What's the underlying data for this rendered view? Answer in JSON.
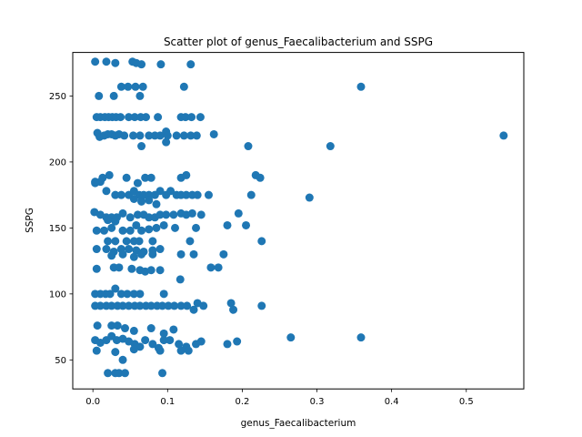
{
  "chart_data": {
    "type": "scatter",
    "title": "Scatter plot of genus_Faecalibacterium and SSPG",
    "xlabel": "genus_Faecalibacterium",
    "ylabel": "SSPG",
    "xlim": [
      -0.027,
      0.577
    ],
    "ylim": [
      28,
      283
    ],
    "xticks": [
      0.0,
      0.1,
      0.2,
      0.3,
      0.4,
      0.5
    ],
    "xtick_labels": [
      "0.0",
      "0.1",
      "0.2",
      "0.3",
      "0.4",
      "0.5"
    ],
    "yticks": [
      50,
      100,
      150,
      200,
      250
    ],
    "ytick_labels": [
      "50",
      "100",
      "150",
      "200",
      "250"
    ],
    "grid": false,
    "color": "#1f77b4",
    "series": [
      {
        "points": [
          [
            0.003,
            276
          ],
          [
            0.018,
            276
          ],
          [
            0.03,
            275
          ],
          [
            0.053,
            276
          ],
          [
            0.058,
            275
          ],
          [
            0.065,
            274
          ],
          [
            0.091,
            274
          ],
          [
            0.131,
            274
          ],
          [
            0.008,
            250
          ],
          [
            0.028,
            250
          ],
          [
            0.063,
            250
          ],
          [
            0.038,
            257
          ],
          [
            0.047,
            257
          ],
          [
            0.057,
            257
          ],
          [
            0.067,
            257
          ],
          [
            0.122,
            257
          ],
          [
            0.359,
            257
          ],
          [
            0.005,
            234
          ],
          [
            0.01,
            234
          ],
          [
            0.016,
            234
          ],
          [
            0.021,
            234
          ],
          [
            0.026,
            234
          ],
          [
            0.031,
            234
          ],
          [
            0.037,
            234
          ],
          [
            0.048,
            234
          ],
          [
            0.056,
            234
          ],
          [
            0.064,
            234
          ],
          [
            0.071,
            234
          ],
          [
            0.087,
            234
          ],
          [
            0.118,
            234
          ],
          [
            0.124,
            234
          ],
          [
            0.132,
            234
          ],
          [
            0.144,
            234
          ],
          [
            0.006,
            222
          ],
          [
            0.009,
            219
          ],
          [
            0.015,
            220
          ],
          [
            0.02,
            221
          ],
          [
            0.025,
            221
          ],
          [
            0.03,
            220
          ],
          [
            0.035,
            221
          ],
          [
            0.042,
            220
          ],
          [
            0.054,
            220
          ],
          [
            0.063,
            220
          ],
          [
            0.075,
            220
          ],
          [
            0.083,
            220
          ],
          [
            0.09,
            220
          ],
          [
            0.098,
            223
          ],
          [
            0.1,
            220
          ],
          [
            0.112,
            220
          ],
          [
            0.122,
            220
          ],
          [
            0.131,
            220
          ],
          [
            0.139,
            220
          ],
          [
            0.162,
            221
          ],
          [
            0.55,
            220
          ],
          [
            0.208,
            212
          ],
          [
            0.318,
            212
          ],
          [
            0.065,
            212
          ],
          [
            0.098,
            215
          ],
          [
            0.003,
            185
          ],
          [
            0.01,
            185
          ],
          [
            0.013,
            188
          ],
          [
            0.022,
            190
          ],
          [
            0.045,
            188
          ],
          [
            0.06,
            184
          ],
          [
            0.07,
            188
          ],
          [
            0.078,
            188
          ],
          [
            0.118,
            188
          ],
          [
            0.125,
            190
          ],
          [
            0.218,
            190
          ],
          [
            0.224,
            188
          ],
          [
            0.003,
            184
          ],
          [
            0.018,
            178
          ],
          [
            0.03,
            175
          ],
          [
            0.038,
            175
          ],
          [
            0.048,
            175
          ],
          [
            0.055,
            178
          ],
          [
            0.062,
            175
          ],
          [
            0.068,
            175
          ],
          [
            0.075,
            175
          ],
          [
            0.083,
            175
          ],
          [
            0.09,
            178
          ],
          [
            0.098,
            175
          ],
          [
            0.104,
            178
          ],
          [
            0.112,
            175
          ],
          [
            0.118,
            175
          ],
          [
            0.125,
            175
          ],
          [
            0.133,
            175
          ],
          [
            0.14,
            175
          ],
          [
            0.155,
            175
          ],
          [
            0.212,
            175
          ],
          [
            0.29,
            173
          ],
          [
            0.055,
            172
          ],
          [
            0.065,
            170
          ],
          [
            0.075,
            171
          ],
          [
            0.085,
            168
          ],
          [
            0.002,
            162
          ],
          [
            0.01,
            160
          ],
          [
            0.018,
            158
          ],
          [
            0.025,
            158
          ],
          [
            0.032,
            158
          ],
          [
            0.04,
            161
          ],
          [
            0.05,
            158
          ],
          [
            0.06,
            160
          ],
          [
            0.068,
            160
          ],
          [
            0.075,
            158
          ],
          [
            0.083,
            158
          ],
          [
            0.09,
            160
          ],
          [
            0.098,
            160
          ],
          [
            0.108,
            160
          ],
          [
            0.118,
            161
          ],
          [
            0.125,
            160
          ],
          [
            0.133,
            161
          ],
          [
            0.145,
            160
          ],
          [
            0.195,
            161
          ],
          [
            0.02,
            156
          ],
          [
            0.03,
            155
          ],
          [
            0.058,
            152
          ],
          [
            0.095,
            152
          ],
          [
            0.11,
            150
          ],
          [
            0.138,
            150
          ],
          [
            0.18,
            152
          ],
          [
            0.205,
            152
          ],
          [
            0.005,
            148
          ],
          [
            0.015,
            148
          ],
          [
            0.025,
            150
          ],
          [
            0.04,
            148
          ],
          [
            0.05,
            148
          ],
          [
            0.065,
            148
          ],
          [
            0.075,
            149
          ],
          [
            0.085,
            150
          ],
          [
            0.02,
            140
          ],
          [
            0.03,
            140
          ],
          [
            0.045,
            140
          ],
          [
            0.055,
            140
          ],
          [
            0.062,
            140
          ],
          [
            0.08,
            140
          ],
          [
            0.13,
            140
          ],
          [
            0.226,
            140
          ],
          [
            0.005,
            134
          ],
          [
            0.018,
            134
          ],
          [
            0.028,
            132
          ],
          [
            0.038,
            134
          ],
          [
            0.048,
            134
          ],
          [
            0.058,
            133
          ],
          [
            0.068,
            132
          ],
          [
            0.08,
            133
          ],
          [
            0.09,
            134
          ],
          [
            0.025,
            129
          ],
          [
            0.04,
            130
          ],
          [
            0.055,
            128
          ],
          [
            0.065,
            130
          ],
          [
            0.08,
            130
          ],
          [
            0.118,
            130
          ],
          [
            0.135,
            130
          ],
          [
            0.175,
            130
          ],
          [
            0.005,
            119
          ],
          [
            0.028,
            120
          ],
          [
            0.035,
            120
          ],
          [
            0.052,
            119
          ],
          [
            0.063,
            118
          ],
          [
            0.07,
            117
          ],
          [
            0.078,
            118
          ],
          [
            0.09,
            118
          ],
          [
            0.158,
            120
          ],
          [
            0.168,
            120
          ],
          [
            0.117,
            111
          ],
          [
            0.003,
            100
          ],
          [
            0.01,
            100
          ],
          [
            0.017,
            100
          ],
          [
            0.023,
            100
          ],
          [
            0.03,
            104
          ],
          [
            0.038,
            100
          ],
          [
            0.046,
            100
          ],
          [
            0.055,
            100
          ],
          [
            0.063,
            100
          ],
          [
            0.095,
            100
          ],
          [
            0.003,
            91
          ],
          [
            0.01,
            91
          ],
          [
            0.018,
            91
          ],
          [
            0.025,
            91
          ],
          [
            0.033,
            91
          ],
          [
            0.04,
            91
          ],
          [
            0.048,
            91
          ],
          [
            0.056,
            91
          ],
          [
            0.063,
            91
          ],
          [
            0.071,
            91
          ],
          [
            0.078,
            91
          ],
          [
            0.086,
            91
          ],
          [
            0.093,
            91
          ],
          [
            0.101,
            91
          ],
          [
            0.109,
            91
          ],
          [
            0.118,
            91
          ],
          [
            0.126,
            91
          ],
          [
            0.14,
            93
          ],
          [
            0.148,
            91
          ],
          [
            0.135,
            88
          ],
          [
            0.185,
            93
          ],
          [
            0.188,
            88
          ],
          [
            0.226,
            91
          ],
          [
            0.006,
            76
          ],
          [
            0.025,
            76
          ],
          [
            0.033,
            76
          ],
          [
            0.043,
            74
          ],
          [
            0.055,
            72
          ],
          [
            0.078,
            74
          ],
          [
            0.095,
            70
          ],
          [
            0.108,
            73
          ],
          [
            0.003,
            65
          ],
          [
            0.01,
            63
          ],
          [
            0.018,
            65
          ],
          [
            0.025,
            68
          ],
          [
            0.032,
            65
          ],
          [
            0.04,
            66
          ],
          [
            0.048,
            64
          ],
          [
            0.056,
            62
          ],
          [
            0.063,
            60
          ],
          [
            0.07,
            65
          ],
          [
            0.08,
            62
          ],
          [
            0.088,
            59
          ],
          [
            0.095,
            65
          ],
          [
            0.103,
            65
          ],
          [
            0.115,
            62
          ],
          [
            0.125,
            60
          ],
          [
            0.138,
            62
          ],
          [
            0.145,
            64
          ],
          [
            0.18,
            62
          ],
          [
            0.193,
            64
          ],
          [
            0.265,
            67
          ],
          [
            0.359,
            67
          ],
          [
            0.005,
            57
          ],
          [
            0.03,
            56
          ],
          [
            0.055,
            58
          ],
          [
            0.09,
            57
          ],
          [
            0.118,
            57
          ],
          [
            0.128,
            57
          ],
          [
            0.04,
            50
          ],
          [
            0.02,
            40
          ],
          [
            0.03,
            40
          ],
          [
            0.035,
            40
          ],
          [
            0.043,
            40
          ],
          [
            0.093,
            40
          ]
        ]
      }
    ]
  }
}
